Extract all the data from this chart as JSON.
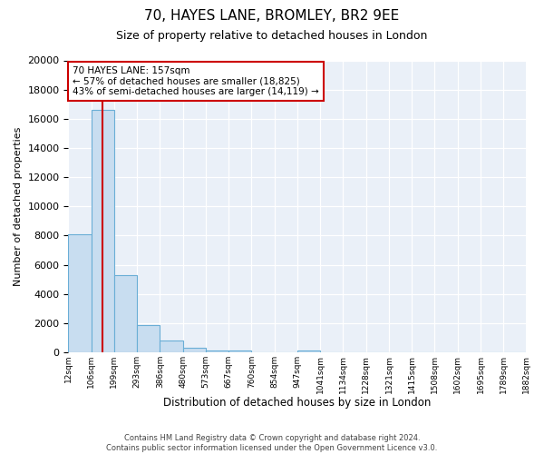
{
  "title": "70, HAYES LANE, BROMLEY, BR2 9EE",
  "subtitle": "Size of property relative to detached houses in London",
  "bar_values": [
    8100,
    16600,
    5300,
    1850,
    800,
    300,
    150,
    100,
    0,
    0,
    150,
    0,
    0,
    0,
    0,
    0,
    0,
    0,
    0,
    0
  ],
  "bin_labels": [
    "12sqm",
    "106sqm",
    "199sqm",
    "293sqm",
    "386sqm",
    "480sqm",
    "573sqm",
    "667sqm",
    "760sqm",
    "854sqm",
    "947sqm",
    "1041sqm",
    "1134sqm",
    "1228sqm",
    "1321sqm",
    "1415sqm",
    "1508sqm",
    "1602sqm",
    "1695sqm",
    "1789sqm",
    "1882sqm"
  ],
  "bar_color": "#c8ddf0",
  "bar_edge_color": "#6aaed6",
  "property_line_x": 1.5,
  "property_line_color": "#cc0000",
  "annotation_title": "70 HAYES LANE: 157sqm",
  "annotation_line1": "← 57% of detached houses are smaller (18,825)",
  "annotation_line2": "43% of semi-detached houses are larger (14,119) →",
  "annotation_box_edge": "#cc0000",
  "ylabel": "Number of detached properties",
  "xlabel": "Distribution of detached houses by size in London",
  "ylim": [
    0,
    20000
  ],
  "yticks": [
    0,
    2000,
    4000,
    6000,
    8000,
    10000,
    12000,
    14000,
    16000,
    18000,
    20000
  ],
  "footer_line1": "Contains HM Land Registry data © Crown copyright and database right 2024.",
  "footer_line2": "Contains public sector information licensed under the Open Government Licence v3.0.",
  "bg_color": "#ffffff",
  "plot_bg_color": "#eaf0f8"
}
